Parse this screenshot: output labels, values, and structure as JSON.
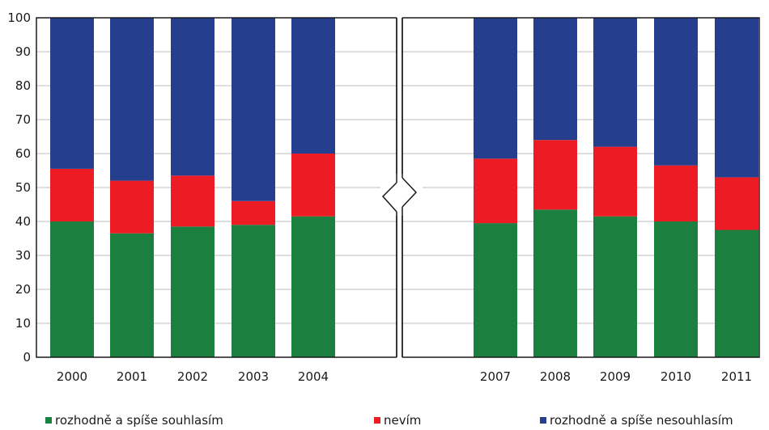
{
  "chart_data": {
    "type": "bar",
    "stacked": true,
    "axis_break": "between 2004 and 2007",
    "ylim": [
      0,
      100
    ],
    "yticks": [
      "0",
      "10",
      "20",
      "30",
      "40",
      "50",
      "60",
      "70",
      "80",
      "90",
      "100"
    ],
    "categories": [
      "2000",
      "2001",
      "2002",
      "2003",
      "2004",
      "2007",
      "2008",
      "2009",
      "2010",
      "2011"
    ],
    "series": [
      {
        "name": "rozhodně a spíše souhlasím",
        "color": "#1a7f3f",
        "values": [
          40,
          36.5,
          38.5,
          39,
          41.5,
          39.5,
          43.5,
          41.5,
          40,
          37.5
        ]
      },
      {
        "name": "nevím",
        "color": "#ed1c24",
        "values": [
          15.5,
          15.5,
          15,
          7,
          18.5,
          19,
          20.5,
          20.5,
          16.5,
          15.5
        ]
      },
      {
        "name": "rozhodně a spíše nesouhlasím",
        "color": "#253f8e",
        "values": [
          44.5,
          48,
          46.5,
          54,
          40,
          41.5,
          36,
          38,
          43.5,
          47
        ]
      }
    ],
    "legend_position": "bottom",
    "grid": true
  }
}
